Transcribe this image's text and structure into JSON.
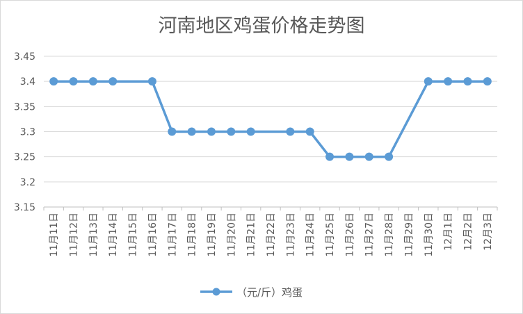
{
  "chart_data": {
    "type": "line",
    "title": "河南地区鸡蛋价格走势图",
    "xlabel": "",
    "ylabel": "",
    "categories": [
      "11月11日",
      "11月12日",
      "11月13日",
      "11月14日",
      "11月15日",
      "11月16日",
      "11月17日",
      "11月18日",
      "11月19日",
      "11月20日",
      "11月21日",
      "11月22日",
      "11月23日",
      "11月24日",
      "11月25日",
      "11月26日",
      "11月27日",
      "11月28日",
      "11月29日",
      "11月30日",
      "12月1日",
      "12月2日",
      "12月3日"
    ],
    "series": [
      {
        "name": "（元/斤）鸡蛋",
        "color": "#5b9bd5",
        "values": [
          3.4,
          3.4,
          3.4,
          3.4,
          null,
          3.4,
          3.3,
          3.3,
          3.3,
          3.3,
          3.3,
          null,
          3.3,
          3.3,
          3.25,
          3.25,
          3.25,
          3.25,
          null,
          3.4,
          3.4,
          3.4,
          3.4
        ]
      }
    ],
    "ylim": [
      3.15,
      3.45
    ],
    "yticks": [
      "3.15",
      "3.2",
      "3.25",
      "3.3",
      "3.35",
      "3.4",
      "3.45"
    ],
    "grid": true,
    "legend_position": "bottom"
  }
}
